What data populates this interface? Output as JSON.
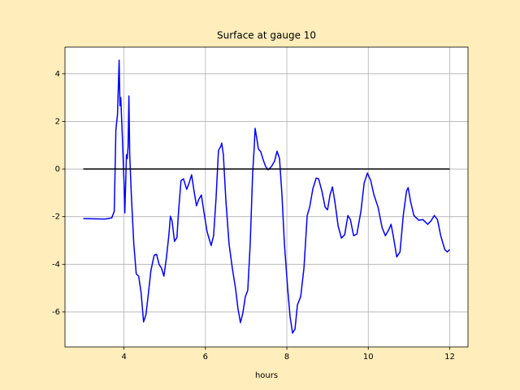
{
  "chart_data": {
    "type": "line",
    "title": "Surface at gauge 10",
    "xlabel": "hours",
    "xlim": [
      2.55,
      12.45
    ],
    "ylim": [
      -7.47,
      5.12
    ],
    "xticks": [
      4,
      6,
      8,
      10,
      12
    ],
    "yticks": [
      -6,
      -4,
      -2,
      0,
      2,
      4
    ],
    "grid": true,
    "series": [
      {
        "color": "#0000ff",
        "x": [
          3,
          3.54,
          3.7,
          3.76,
          3.8,
          3.84,
          3.88,
          3.9,
          3.92,
          3.96,
          4.0,
          4.02,
          4.06,
          4.08,
          4.1,
          4.12,
          4.14,
          4.18,
          4.24,
          4.3,
          4.36,
          4.42,
          4.48,
          4.54,
          4.6,
          4.66,
          4.74,
          4.8,
          4.86,
          4.92,
          4.98,
          5.04,
          5.1,
          5.14,
          5.18,
          5.24,
          5.3,
          5.34,
          5.4,
          5.46,
          5.54,
          5.6,
          5.66,
          5.72,
          5.78,
          5.84,
          5.9,
          5.96,
          6.04,
          6.14,
          6.2,
          6.26,
          6.32,
          6.38,
          6.4,
          6.44,
          6.5,
          6.58,
          6.66,
          6.74,
          6.8,
          6.86,
          6.92,
          6.98,
          7.04,
          7.1,
          7.16,
          7.2,
          7.22,
          7.26,
          7.3,
          7.36,
          7.42,
          7.48,
          7.54,
          7.62,
          7.7,
          7.76,
          7.82,
          7.88,
          7.94,
          8.02,
          8.08,
          8.14,
          8.2,
          8.26,
          8.34,
          8.42,
          8.5,
          8.56,
          8.64,
          8.72,
          8.78,
          8.86,
          8.94,
          9.0,
          9.06,
          9.12,
          9.18,
          9.26,
          9.34,
          9.42,
          9.5,
          9.56,
          9.64,
          9.72,
          9.82,
          9.9,
          9.98,
          10.06,
          10.14,
          10.24,
          10.34,
          10.42,
          10.5,
          10.56,
          10.62,
          10.7,
          10.78,
          10.86,
          10.94,
          10.98,
          11.04,
          11.12,
          11.24,
          11.34,
          11.46,
          11.54,
          11.62,
          11.7,
          11.78,
          11.88,
          11.94,
          12.0
        ],
        "values": [
          -2.08,
          -2.1,
          -2.05,
          -1.77,
          1.64,
          2.3,
          4.57,
          2.66,
          3.0,
          1.3,
          -0.58,
          -1.84,
          0.6,
          0.44,
          0.95,
          3.07,
          0.6,
          -1.1,
          -3.14,
          -4.4,
          -4.5,
          -5.2,
          -6.42,
          -6.1,
          -5.2,
          -4.27,
          -3.62,
          -3.58,
          -4.0,
          -4.16,
          -4.5,
          -3.75,
          -2.8,
          -1.98,
          -2.18,
          -3.04,
          -2.87,
          -1.77,
          -0.48,
          -0.41,
          -0.85,
          -0.58,
          -0.24,
          -0.92,
          -1.54,
          -1.26,
          -1.09,
          -1.77,
          -2.63,
          -3.21,
          -2.8,
          -1.26,
          0.78,
          0.96,
          1.09,
          0.61,
          -1.26,
          -3.14,
          -4.16,
          -5.02,
          -5.87,
          -6.45,
          -6.04,
          -5.36,
          -5.09,
          -3.14,
          -0.17,
          0.96,
          1.71,
          1.3,
          0.85,
          0.72,
          0.38,
          0.1,
          -0.03,
          0.1,
          0.34,
          0.75,
          0.44,
          -1.09,
          -3.14,
          -5.02,
          -6.21,
          -6.89,
          -6.72,
          -5.7,
          -5.36,
          -4.16,
          -1.95,
          -1.6,
          -0.82,
          -0.38,
          -0.41,
          -0.92,
          -1.6,
          -1.71,
          -1.09,
          -0.75,
          -1.37,
          -2.39,
          -2.9,
          -2.76,
          -1.95,
          -2.12,
          -2.8,
          -2.73,
          -1.77,
          -0.58,
          -0.17,
          -0.48,
          -1.09,
          -1.6,
          -2.46,
          -2.8,
          -2.56,
          -2.32,
          -2.87,
          -3.69,
          -3.48,
          -1.95,
          -0.92,
          -0.78,
          -1.37,
          -1.95,
          -2.15,
          -2.12,
          -2.32,
          -2.18,
          -1.95,
          -2.12,
          -2.8,
          -3.38,
          -3.48,
          -3.38
        ]
      },
      {
        "color": "#000000",
        "x": [
          3,
          12
        ],
        "values": [
          0,
          0
        ]
      }
    ]
  }
}
